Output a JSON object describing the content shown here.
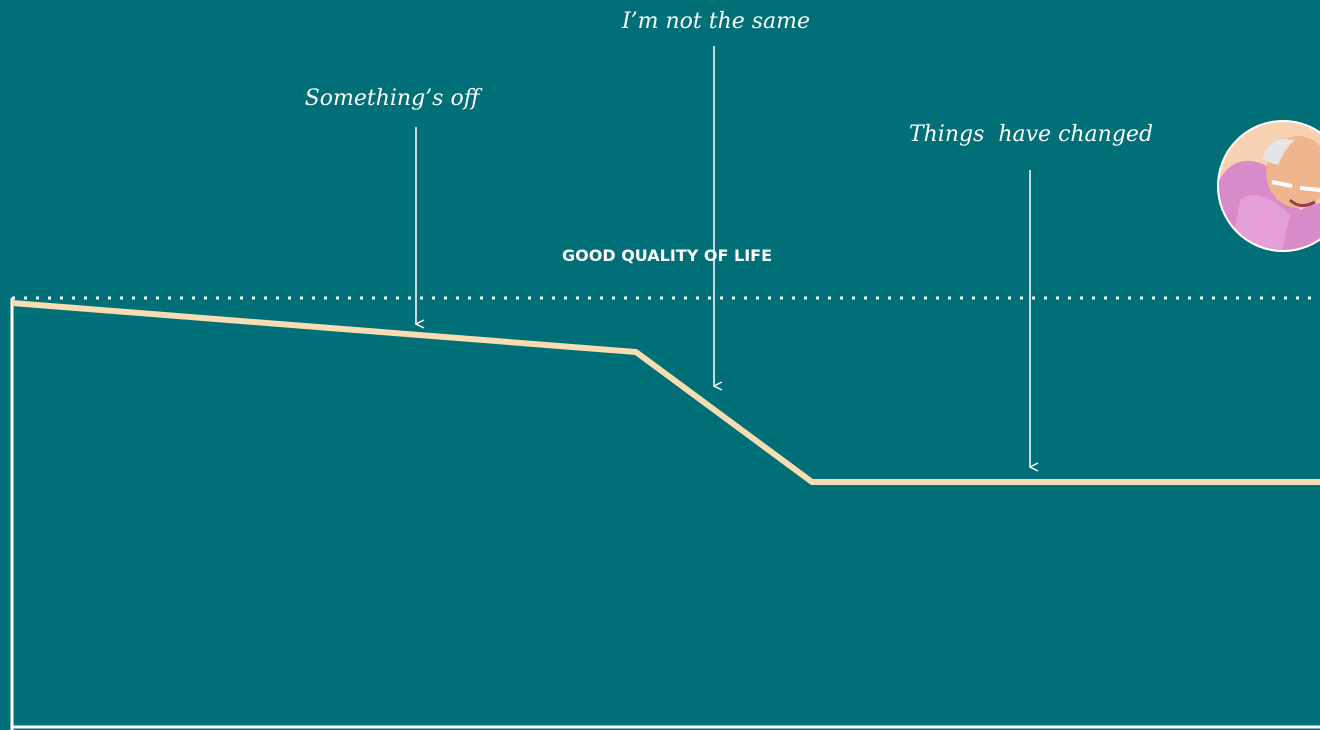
{
  "annotations": [
    {
      "label": "Something’s off"
    },
    {
      "label": "I’m not the same"
    },
    {
      "label": "Things  have changed"
    }
  ],
  "baseline_label": "GOOD QUALITY OF LIFE"
}
